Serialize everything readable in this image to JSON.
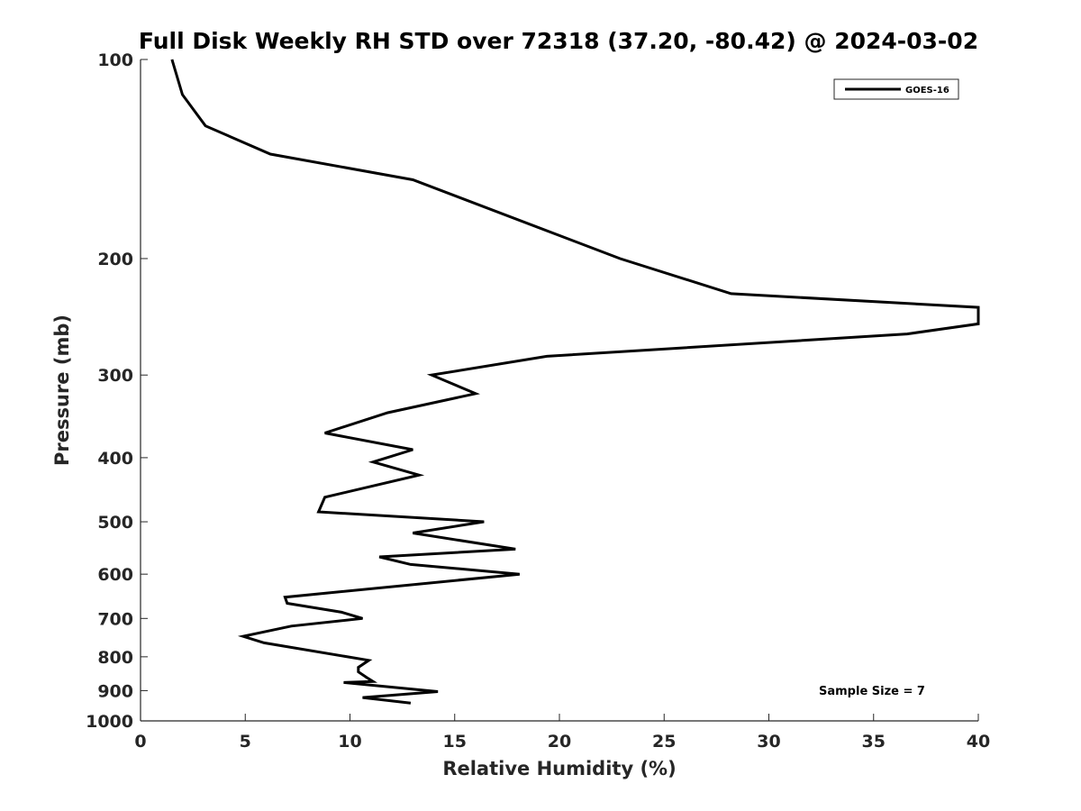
{
  "chart_data": {
    "type": "line",
    "title": "Full Disk Weekly RH STD over 72318 (37.20, -80.42) @ 2024-03-02",
    "xlabel": "Relative Humidity (%)",
    "ylabel": "Pressure (mb)",
    "xlim": [
      0,
      40
    ],
    "ylim": [
      100,
      1000
    ],
    "y_scale": "log",
    "y_reversed": true,
    "x_ticks": [
      "0",
      "5",
      "10",
      "15",
      "20",
      "25",
      "30",
      "35",
      "40"
    ],
    "y_ticks": [
      "100",
      "200",
      "300",
      "400",
      "500",
      "600",
      "700",
      "800",
      "900",
      "1000"
    ],
    "grid": false,
    "legend_position": "top-right",
    "annotation": "Sample Size = 7",
    "series": [
      {
        "name": "GOES-16",
        "color": "#000000",
        "x": [
          1.5,
          2.0,
          3.1,
          6.2,
          13.0,
          22.9,
          28.2,
          40.0,
          40.0,
          36.6,
          19.4,
          13.9,
          16.0,
          11.8,
          8.8,
          13.0,
          11.1,
          13.3,
          8.8,
          8.5,
          16.4,
          13.0,
          17.9,
          11.4,
          12.9,
          18.1,
          6.9,
          7.0,
          9.6,
          10.6,
          7.2,
          4.9,
          5.9,
          10.9,
          10.4,
          10.4,
          10.8,
          11.1,
          9.7,
          14.2,
          10.6,
          12.9
        ],
        "y": [
          100,
          113,
          126,
          139,
          152,
          200,
          226,
          237,
          251,
          260,
          281,
          300,
          320,
          342,
          367,
          389,
          406,
          425,
          459,
          483,
          500,
          520,
          550,
          565,
          580,
          600,
          650,
          664,
          685,
          700,
          719,
          745,
          762,
          810,
          830,
          843,
          860,
          872,
          875,
          903,
          922,
          940
        ]
      }
    ]
  }
}
